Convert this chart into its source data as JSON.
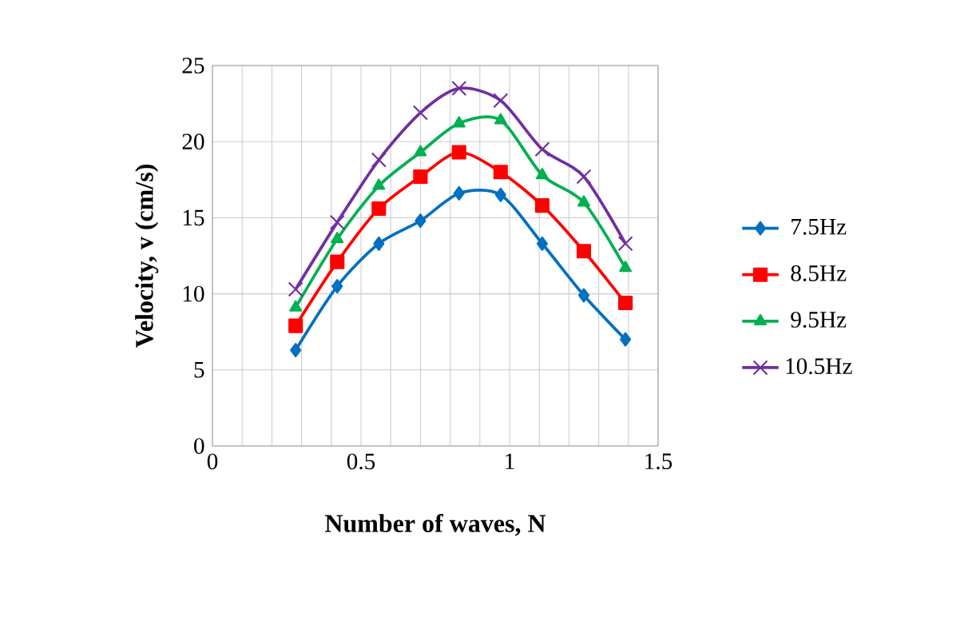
{
  "chart_data": {
    "type": "line",
    "xlabel": "Number of waves, N",
    "ylabel": "Velocity, v (cm/s)",
    "xlim": [
      0,
      1.5
    ],
    "ylim": [
      0,
      25
    ],
    "xticks": [
      0,
      {
        "value": 0.1,
        "label": null
      },
      {
        "value": 0.2,
        "label": null
      },
      {
        "value": 0.3,
        "label": null
      },
      {
        "value": 0.4,
        "label": null
      },
      0.5,
      {
        "value": 0.6,
        "label": null
      },
      {
        "value": 0.7,
        "label": null
      },
      {
        "value": 0.8,
        "label": null
      },
      {
        "value": 0.9,
        "label": null
      },
      1,
      {
        "value": 1.1,
        "label": null
      },
      {
        "value": 1.2,
        "label": null
      },
      {
        "value": 1.3,
        "label": null
      },
      {
        "value": 1.4,
        "label": null
      },
      1.5
    ],
    "yticks": [
      0,
      5,
      10,
      15,
      20,
      25
    ],
    "grid": true,
    "legend": "right",
    "line_style": "solid",
    "x": [
      0.28,
      0.42,
      0.56,
      0.7,
      0.83,
      0.97,
      1.11,
      1.25,
      1.39
    ],
    "series": [
      {
        "name": "7.5Hz",
        "color": "#0070c0",
        "marker": "diamond",
        "values": [
          6.3,
          10.5,
          13.3,
          14.8,
          16.6,
          16.5,
          13.3,
          9.9,
          7.0
        ]
      },
      {
        "name": "8.5Hz",
        "color": "#ff0000",
        "marker": "square",
        "values": [
          7.9,
          12.1,
          15.6,
          17.7,
          19.3,
          18.0,
          15.8,
          12.8,
          9.4
        ]
      },
      {
        "name": "9.5Hz",
        "color": "#00b050",
        "marker": "triangle",
        "values": [
          9.1,
          13.6,
          17.1,
          19.3,
          21.2,
          21.4,
          17.8,
          16.0,
          11.7
        ]
      },
      {
        "name": "10.5Hz",
        "color": "#7030a0",
        "marker": "cross",
        "values": [
          10.3,
          14.7,
          18.8,
          21.9,
          23.5,
          22.7,
          19.5,
          17.7,
          13.3
        ]
      }
    ]
  }
}
